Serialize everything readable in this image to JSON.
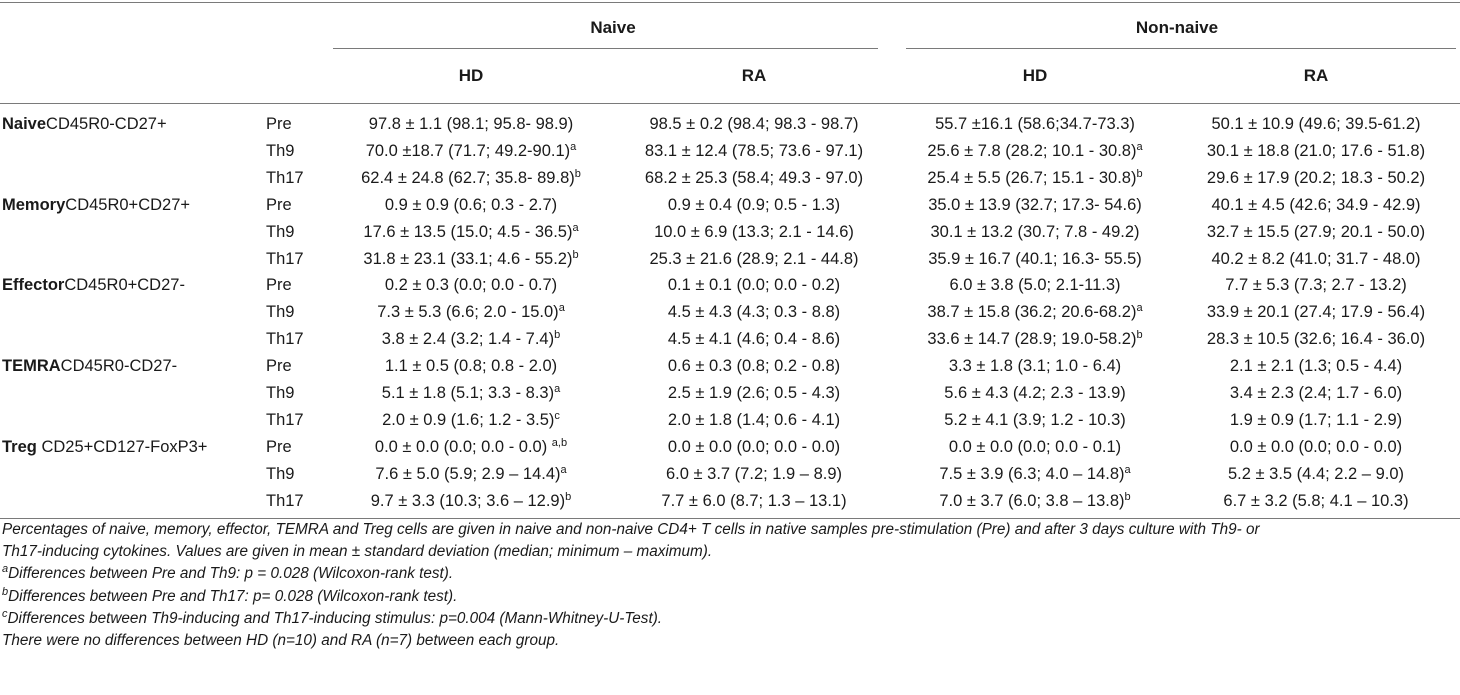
{
  "header": {
    "group_naive": "Naive",
    "group_non_naive": "Non-naive",
    "col_naive_hd": "HD",
    "col_naive_ra": "RA",
    "col_nonnaive_hd": "HD",
    "col_nonnaive_ra": "RA"
  },
  "rows": [
    {
      "cat_bold": "Naive",
      "cat_rest": "CD45R0-CD27+",
      "cond": "Pre",
      "v1": "97.8 ± 1.1 (98.1; 95.8- 98.9)",
      "s1": "",
      "v2": "98.5 ± 0.2 (98.4; 98.3 - 98.7)",
      "s2": "",
      "v3": "55.7 ±16.1 (58.6;34.7-73.3)",
      "s3": "",
      "v4": "50.1 ± 10.9 (49.6; 39.5-61.2)",
      "s4": ""
    },
    {
      "cat_bold": "",
      "cat_rest": "",
      "cond": "Th9",
      "v1": "70.0 ±18.7 (71.7; 49.2-90.1)",
      "s1": "a",
      "v2": "83.1 ± 12.4 (78.5; 73.6 - 97.1)",
      "s2": "",
      "v3": "25.6 ± 7.8 (28.2; 10.1 - 30.8)",
      "s3": "a",
      "v4": "30.1 ± 18.8 (21.0; 17.6 - 51.8)",
      "s4": ""
    },
    {
      "cat_bold": "",
      "cat_rest": "",
      "cond": "Th17",
      "v1": "62.4 ± 24.8 (62.7; 35.8- 89.8)",
      "s1": "b",
      "v2": "68.2 ± 25.3 (58.4; 49.3 - 97.0)",
      "s2": "",
      "v3": "25.4 ± 5.5 (26.7; 15.1 - 30.8)",
      "s3": "b",
      "v4": "29.6 ± 17.9 (20.2; 18.3 - 50.2)",
      "s4": ""
    },
    {
      "cat_bold": "Memory",
      "cat_rest": "CD45R0+CD27+",
      "cond": "Pre",
      "v1": "0.9 ± 0.9 (0.6; 0.3 - 2.7)",
      "s1": "",
      "v2": "0.9 ± 0.4 (0.9; 0.5 - 1.3)",
      "s2": "",
      "v3": "35.0 ± 13.9 (32.7; 17.3- 54.6)",
      "s3": "",
      "v4": "40.1 ± 4.5 (42.6; 34.9 - 42.9)",
      "s4": ""
    },
    {
      "cat_bold": "",
      "cat_rest": "",
      "cond": "Th9",
      "v1": "17.6 ± 13.5 (15.0; 4.5 - 36.5)",
      "s1": "a",
      "v2": "10.0 ± 6.9 (13.3; 2.1 - 14.6)",
      "s2": "",
      "v3": "30.1 ± 13.2 (30.7; 7.8 - 49.2)",
      "s3": "",
      "v4": "32.7 ± 15.5 (27.9; 20.1 - 50.0)",
      "s4": ""
    },
    {
      "cat_bold": "",
      "cat_rest": "",
      "cond": "Th17",
      "v1": "31.8 ± 23.1 (33.1; 4.6 - 55.2)",
      "s1": "b",
      "v2": "25.3 ± 21.6 (28.9; 2.1 - 44.8)",
      "s2": "",
      "v3": "35.9 ± 16.7 (40.1; 16.3- 55.5)",
      "s3": "",
      "v4": "40.2 ± 8.2 (41.0; 31.7 - 48.0)",
      "s4": ""
    },
    {
      "cat_bold": "Effector",
      "cat_rest": "CD45R0+CD27-",
      "cond": "Pre",
      "v1": "0.2 ± 0.3 (0.0; 0.0 - 0.7)",
      "s1": "",
      "v2": "0.1 ± 0.1 (0.0; 0.0 - 0.2)",
      "s2": "",
      "v3": "6.0 ± 3.8 (5.0; 2.1-11.3)",
      "s3": "",
      "v4": "7.7 ± 5.3 (7.3; 2.7 - 13.2)",
      "s4": ""
    },
    {
      "cat_bold": "",
      "cat_rest": "",
      "cond": "Th9",
      "v1": "7.3 ± 5.3 (6.6; 2.0 - 15.0)",
      "s1": "a",
      "v2": "4.5 ± 4.3 (4.3; 0.3 - 8.8)",
      "s2": "",
      "v3": "38.7 ± 15.8 (36.2; 20.6-68.2)",
      "s3": "a",
      "v4": "33.9 ± 20.1 (27.4; 17.9 - 56.4)",
      "s4": ""
    },
    {
      "cat_bold": "",
      "cat_rest": "",
      "cond": "Th17",
      "v1": "3.8 ± 2.4 (3.2; 1.4 - 7.4)",
      "s1": "b",
      "v2": "4.5 ± 4.1 (4.6; 0.4 - 8.6)",
      "s2": "",
      "v3": "33.6 ± 14.7 (28.9; 19.0-58.2)",
      "s3": "b",
      "v4": "28.3 ± 10.5 (32.6; 16.4 - 36.0)",
      "s4": ""
    },
    {
      "cat_bold": "TEMRA",
      "cat_rest": "CD45R0-CD27-",
      "cond": "Pre",
      "v1": "1.1 ± 0.5 (0.8; 0.8 - 2.0)",
      "s1": "",
      "v2": "0.6 ± 0.3 (0.8; 0.2 - 0.8)",
      "s2": "",
      "v3": "3.3 ± 1.8 (3.1; 1.0 - 6.4)",
      "s3": "",
      "v4": "2.1 ± 2.1 (1.3; 0.5 - 4.4)",
      "s4": ""
    },
    {
      "cat_bold": "",
      "cat_rest": "",
      "cond": "Th9",
      "v1": "5.1 ± 1.8 (5.1; 3.3 - 8.3)",
      "s1": "a",
      "v2": "2.5 ± 1.9 (2.6; 0.5 - 4.3)",
      "s2": "",
      "v3": "5.6 ± 4.3 (4.2; 2.3 - 13.9)",
      "s3": "",
      "v4": "3.4 ± 2.3 (2.4; 1.7 - 6.0)",
      "s4": ""
    },
    {
      "cat_bold": "",
      "cat_rest": "",
      "cond": "Th17",
      "v1": "2.0 ± 0.9 (1.6; 1.2 - 3.5)",
      "s1": "c",
      "v2": "2.0 ± 1.8 (1.4; 0.6 - 4.1)",
      "s2": "",
      "v3": "5.2 ± 4.1 (3.9; 1.2 - 10.3)",
      "s3": "",
      "v4": "1.9 ± 0.9 (1.7; 1.1 - 2.9)",
      "s4": ""
    },
    {
      "cat_bold": "Treg",
      "cat_rest": " CD25+CD127-FoxP3+",
      "cond": "Pre",
      "v1": "0.0 ± 0.0 (0.0; 0.0 - 0.0) ",
      "s1": "a,b",
      "v2": "0.0 ± 0.0 (0.0; 0.0 - 0.0)",
      "s2": "",
      "v3": "0.0 ± 0.0 (0.0; 0.0 - 0.1)",
      "s3": "",
      "v4": "0.0 ± 0.0 (0.0; 0.0 - 0.0)",
      "s4": ""
    },
    {
      "cat_bold": "",
      "cat_rest": "",
      "cond": "Th9",
      "v1": "7.6 ± 5.0 (5.9; 2.9 – 14.4)",
      "s1": "a",
      "v2": "6.0 ± 3.7 (7.2; 1.9 – 8.9)",
      "s2": "",
      "v3": "7.5 ± 3.9 (6.3; 4.0 – 14.8)",
      "s3": "a",
      "v4": "5.2 ± 3.5 (4.4; 2.2 – 9.0)",
      "s4": ""
    },
    {
      "cat_bold": "",
      "cat_rest": "",
      "cond": "Th17",
      "v1": "9.7 ± 3.3 (10.3; 3.6 – 12.9)",
      "s1": "b",
      "v2": "7.7 ± 6.0 (8.7; 1.3 – 13.1)",
      "s2": "",
      "v3": "7.0 ± 3.7 (6.0; 3.8 – 13.8)",
      "s3": "b",
      "v4": "6.7 ± 3.2 (5.8; 4.1 – 10.3)",
      "s4": ""
    }
  ],
  "notes": {
    "caption_line1": "Percentages of naive, memory, effector, TEMRA and Treg cells are given in naive and non-naive CD4+ T cells in native samples pre-stimulation (Pre) and after 3 days culture with Th9- or",
    "caption_line2": "Th17-inducing cytokines. Values are given in mean ± standard deviation (median; minimum – maximum).",
    "footnote_a_mark": "a",
    "footnote_a": "Differences between Pre and Th9: p = 0.028 (Wilcoxon-rank test).",
    "footnote_b_mark": "b",
    "footnote_b": "Differences between Pre and Th17: p= 0.028 (Wilcoxon-rank test).",
    "footnote_c_mark": "c",
    "footnote_c": "Differences between Th9-inducing and Th17-inducing stimulus: p=0.004 (Mann-Whitney-U-Test).",
    "footnote_final": "There were no differences between HD (n=10) and RA (n=7) between each group."
  }
}
